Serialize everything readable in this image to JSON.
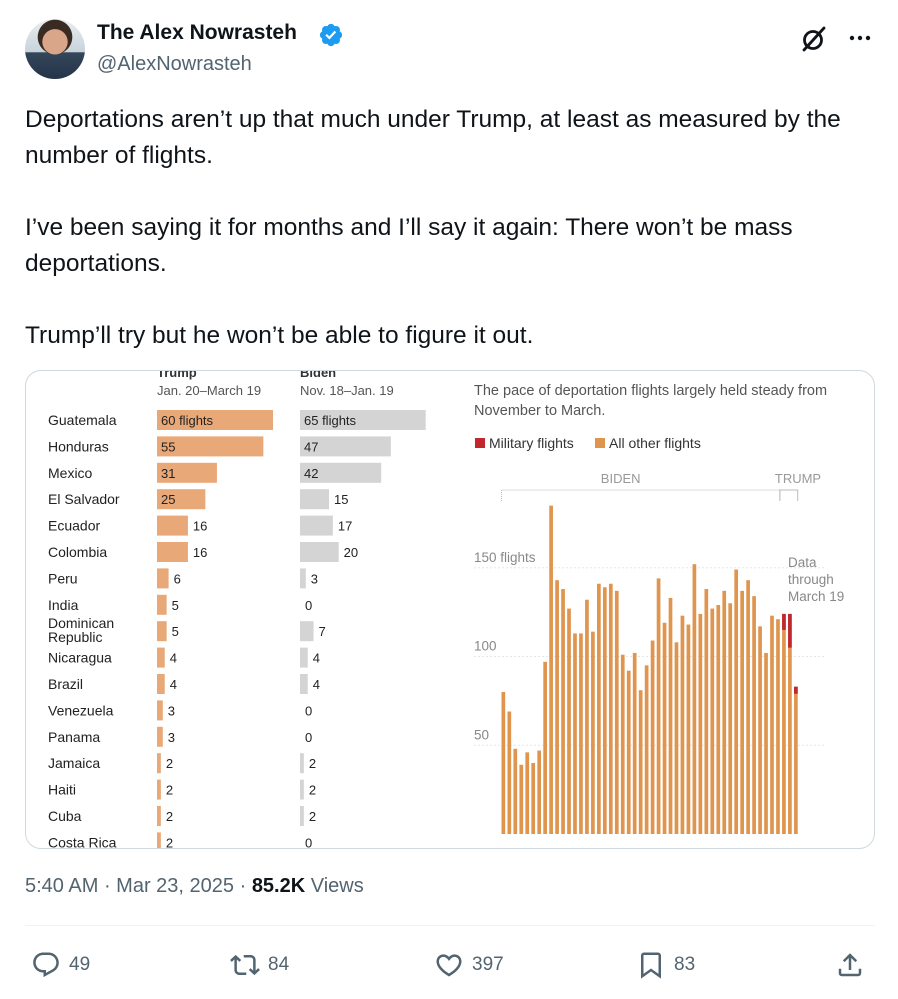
{
  "author": {
    "display_name": "The Alex Nowrasteh",
    "handle": "@AlexNowrasteh"
  },
  "tweet": {
    "paragraphs": [
      "Deportations aren’t up that much under Trump, at least as measured by the number of flights.",
      "I’ve been saying it for months and I’ll say it again: There won’t be mass deportations.",
      "Trump’ll try but he won’t be able to figure it out."
    ],
    "time": "5:40 AM",
    "date": "Mar 23, 2025",
    "views_count": "85.2K",
    "views_label": "Views"
  },
  "actions": {
    "replies": "49",
    "reposts": "84",
    "likes": "397",
    "bookmarks": "83"
  },
  "icons": [
    "verified-badge-icon",
    "grok-icon",
    "more-icon",
    "reply-icon",
    "repost-icon",
    "like-icon",
    "bookmark-icon",
    "share-icon"
  ],
  "colors": {
    "accent_blue": "#1d9bf0",
    "trump_bar": "#e8a878",
    "biden_bar": "#d4d4d4",
    "military": "#c0282d",
    "other_flights": "#e0954f"
  },
  "chart_data": [
    {
      "type": "bar",
      "orientation": "horizontal",
      "categories": [
        "Guatemala",
        "Honduras",
        "Mexico",
        "El Salvador",
        "Ecuador",
        "Colombia",
        "Peru",
        "India",
        "Dominican Republic",
        "Nicaragua",
        "Brazil",
        "Venezuela",
        "Panama",
        "Jamaica",
        "Haiti",
        "Cuba",
        "Costa Rica"
      ],
      "category_lines": [
        [
          "Guatemala"
        ],
        [
          "Honduras"
        ],
        [
          "Mexico"
        ],
        [
          "El Salvador"
        ],
        [
          "Ecuador"
        ],
        [
          "Colombia"
        ],
        [
          "Peru"
        ],
        [
          "India"
        ],
        [
          "Dominican",
          "Republic"
        ],
        [
          "Nicaragua"
        ],
        [
          "Brazil"
        ],
        [
          "Venezuela"
        ],
        [
          "Panama"
        ],
        [
          "Jamaica"
        ],
        [
          "Haiti"
        ],
        [
          "Cuba"
        ],
        [
          "Costa Rica"
        ]
      ],
      "series": [
        {
          "name": "Trump",
          "subtitle": "Jan. 20–March 19",
          "values": [
            60,
            55,
            31,
            25,
            16,
            16,
            6,
            5,
            5,
            4,
            4,
            3,
            3,
            2,
            2,
            2,
            2
          ],
          "labels": [
            "60 flights",
            "55",
            "31",
            "25",
            "16",
            "16",
            "6",
            "5",
            "5",
            "4",
            "4",
            "3",
            "3",
            "2",
            "2",
            "2",
            "2"
          ]
        },
        {
          "name": "Biden",
          "subtitle": "Nov. 18–Jan. 19",
          "values": [
            65,
            47,
            42,
            15,
            17,
            20,
            3,
            0,
            7,
            4,
            4,
            0,
            0,
            2,
            2,
            2,
            0
          ],
          "labels": [
            "65 flights",
            "47",
            "42",
            "15",
            "17",
            "20",
            "3",
            "0",
            "7",
            "4",
            "4",
            "0",
            "0",
            "2",
            "2",
            "2",
            "0"
          ]
        }
      ]
    },
    {
      "type": "bar",
      "title": "The pace of deportation flights largely held steady from November to March.",
      "legend": [
        {
          "name": "Military flights",
          "color": "#c0282d"
        },
        {
          "name": "All other flights",
          "color": "#e0954f"
        }
      ],
      "period_labels": [
        "BIDEN",
        "TRUMP"
      ],
      "annotation": [
        "Data",
        "through",
        "March 19"
      ],
      "y_ticks": [
        50,
        100,
        150
      ],
      "y_tick_labels": [
        "50",
        "100",
        "150 flights"
      ],
      "ylim": [
        0,
        190
      ],
      "values": [
        80,
        69,
        48,
        39,
        46,
        40,
        47,
        97,
        185,
        143,
        138,
        127,
        113,
        113,
        132,
        114,
        141,
        139,
        141,
        137,
        101,
        92,
        102,
        81,
        95,
        109,
        144,
        119,
        133,
        108,
        123,
        118,
        152,
        124,
        138,
        127,
        129,
        137,
        130,
        149,
        137,
        143,
        134,
        117,
        102,
        123,
        121,
        124,
        124,
        83
      ],
      "military": [
        0,
        0,
        0,
        0,
        0,
        0,
        0,
        0,
        0,
        0,
        0,
        0,
        0,
        0,
        0,
        0,
        0,
        0,
        0,
        0,
        0,
        0,
        0,
        0,
        0,
        0,
        0,
        0,
        0,
        0,
        0,
        0,
        0,
        0,
        0,
        0,
        0,
        0,
        0,
        0,
        0,
        0,
        0,
        0,
        0,
        0,
        0,
        9,
        19,
        4
      ]
    }
  ]
}
